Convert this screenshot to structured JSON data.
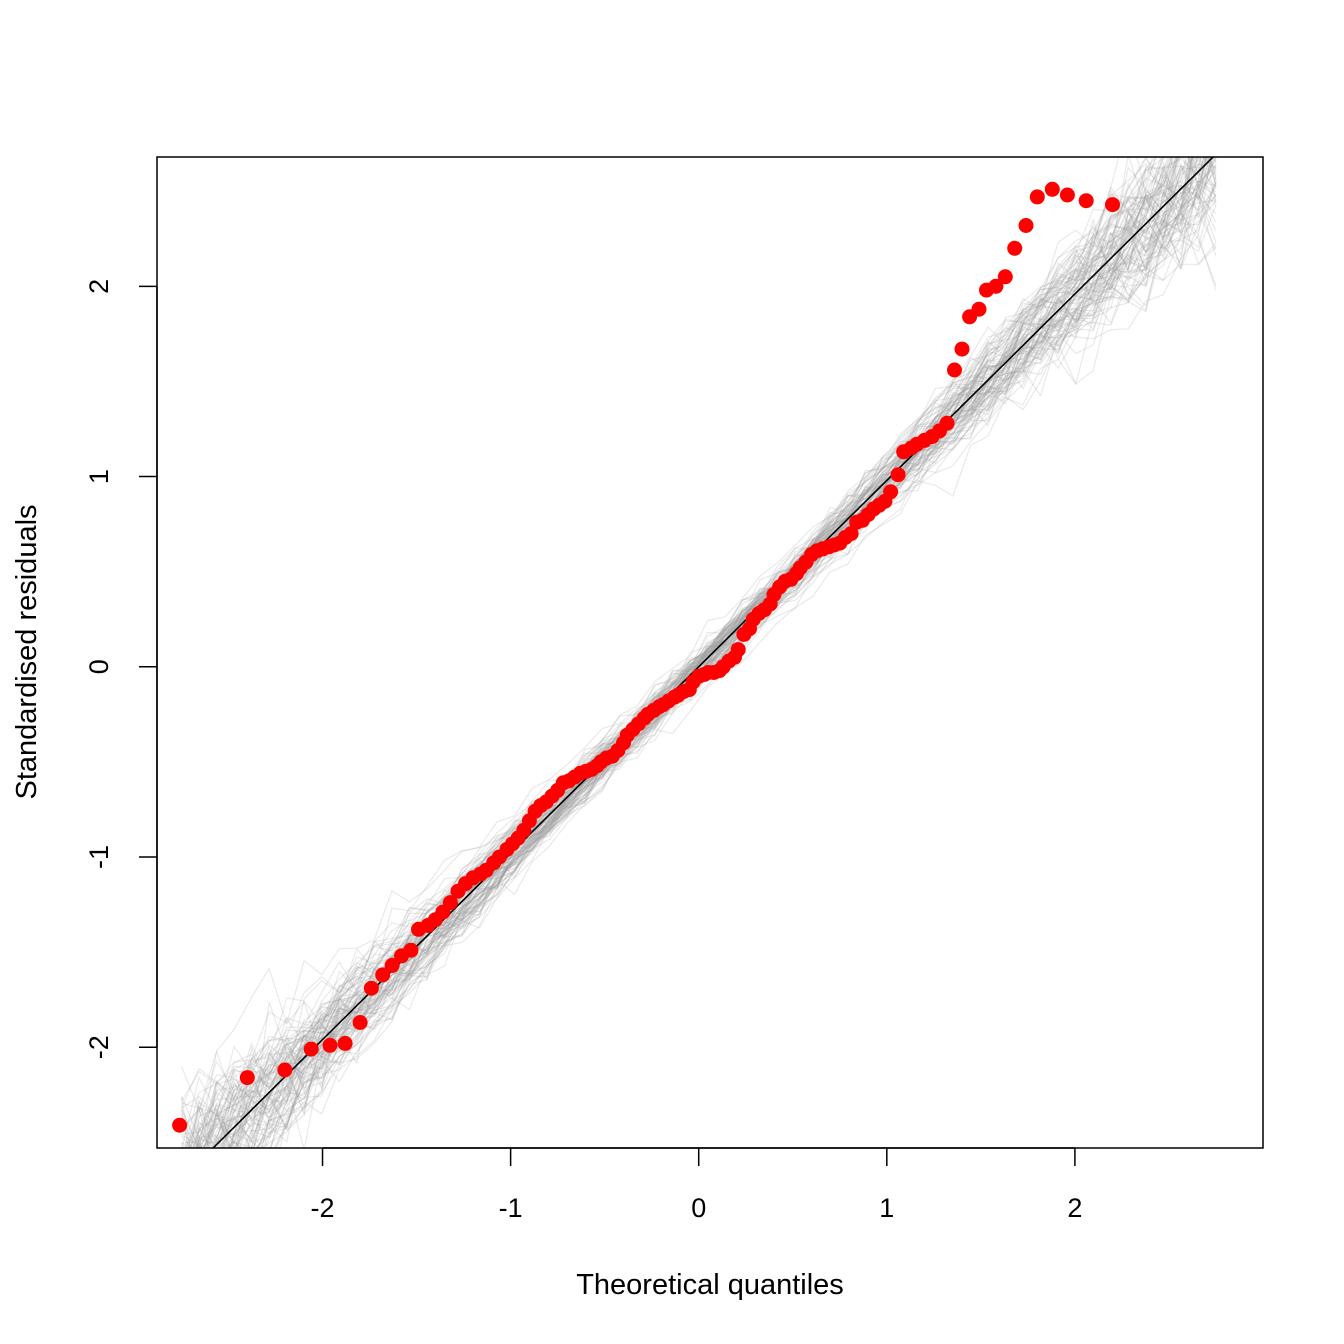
{
  "chart_data": {
    "type": "scatter",
    "title": "",
    "xlabel": "Theoretical quantiles",
    "ylabel": "Standardised residuals",
    "xlim": [
      -2.88,
      3.0
    ],
    "ylim": [
      -2.53,
      2.68
    ],
    "xticks": [
      -2,
      -1,
      0,
      1,
      2
    ],
    "yticks": [
      -2,
      -1,
      0,
      1,
      2
    ],
    "xtick_labels": [
      "-2",
      "-1",
      "0",
      "1",
      "2"
    ],
    "ytick_labels": [
      "-2",
      "-1",
      "0",
      "1",
      "2"
    ],
    "grid": false,
    "colors": {
      "points": "#ff0000",
      "reference_line": "#000000",
      "envelope": "#999999"
    },
    "reference_line": {
      "intercept": 0.0,
      "slope": 0.98
    },
    "envelope": {
      "count": 100,
      "x_range": [
        -2.75,
        2.75
      ]
    },
    "points": {
      "x": [
        -2.76,
        -2.4,
        -2.2,
        -2.06,
        -1.96,
        -1.88,
        -1.8,
        -1.74,
        -1.68,
        -1.63,
        -1.58,
        -1.53,
        -1.49,
        -1.44,
        -1.4,
        -1.36,
        -1.32,
        -1.28,
        -1.24,
        -1.2,
        -1.16,
        -1.13,
        -1.09,
        -1.06,
        -1.02,
        -0.99,
        -0.96,
        -0.93,
        -0.9,
        -0.87,
        -0.84,
        -0.81,
        -0.78,
        -0.75,
        -0.72,
        -0.69,
        -0.66,
        -0.63,
        -0.6,
        -0.57,
        -0.54,
        -0.52,
        -0.49,
        -0.46,
        -0.43,
        -0.4,
        -0.38,
        -0.35,
        -0.32,
        -0.29,
        -0.27,
        -0.24,
        -0.21,
        -0.19,
        -0.16,
        -0.13,
        -0.11,
        -0.08,
        -0.05,
        -0.03,
        0.0,
        0.03,
        0.05,
        0.08,
        0.11,
        0.13,
        0.16,
        0.19,
        0.21,
        0.24,
        0.27,
        0.29,
        0.32,
        0.35,
        0.38,
        0.4,
        0.43,
        0.46,
        0.49,
        0.52,
        0.54,
        0.57,
        0.6,
        0.63,
        0.66,
        0.69,
        0.72,
        0.75,
        0.78,
        0.81,
        0.84,
        0.87,
        0.9,
        0.93,
        0.96,
        0.99,
        1.02,
        1.06,
        1.09,
        1.13,
        1.16,
        1.2,
        1.24,
        1.28,
        1.32,
        1.36,
        1.4,
        1.44,
        1.49,
        1.53,
        1.58,
        1.63,
        1.68,
        1.74,
        1.8,
        1.88,
        1.96,
        2.06,
        2.2
      ],
      "y": [
        -2.41,
        -2.16,
        -2.12,
        -2.01,
        -1.99,
        -1.98,
        -1.87,
        -1.69,
        -1.62,
        -1.57,
        -1.52,
        -1.49,
        -1.38,
        -1.36,
        -1.33,
        -1.29,
        -1.24,
        -1.18,
        -1.14,
        -1.11,
        -1.09,
        -1.07,
        -1.03,
        -1.0,
        -0.96,
        -0.93,
        -0.9,
        -0.86,
        -0.81,
        -0.76,
        -0.73,
        -0.71,
        -0.68,
        -0.65,
        -0.61,
        -0.6,
        -0.58,
        -0.56,
        -0.55,
        -0.54,
        -0.52,
        -0.5,
        -0.48,
        -0.47,
        -0.44,
        -0.4,
        -0.36,
        -0.33,
        -0.3,
        -0.27,
        -0.25,
        -0.23,
        -0.21,
        -0.2,
        -0.18,
        -0.16,
        -0.15,
        -0.13,
        -0.12,
        -0.08,
        -0.05,
        -0.04,
        -0.03,
        -0.03,
        -0.02,
        0.0,
        0.03,
        0.05,
        0.09,
        0.17,
        0.2,
        0.25,
        0.28,
        0.3,
        0.33,
        0.38,
        0.42,
        0.45,
        0.46,
        0.49,
        0.52,
        0.55,
        0.59,
        0.61,
        0.62,
        0.63,
        0.64,
        0.65,
        0.68,
        0.7,
        0.76,
        0.77,
        0.8,
        0.83,
        0.85,
        0.87,
        0.92,
        1.01,
        1.13,
        1.15,
        1.17,
        1.19,
        1.21,
        1.24,
        1.28,
        1.56,
        1.67,
        1.84,
        1.88,
        1.98,
        2.0,
        2.05,
        2.2,
        2.32,
        2.47,
        2.51,
        2.48,
        2.45,
        2.43
      ]
    }
  }
}
